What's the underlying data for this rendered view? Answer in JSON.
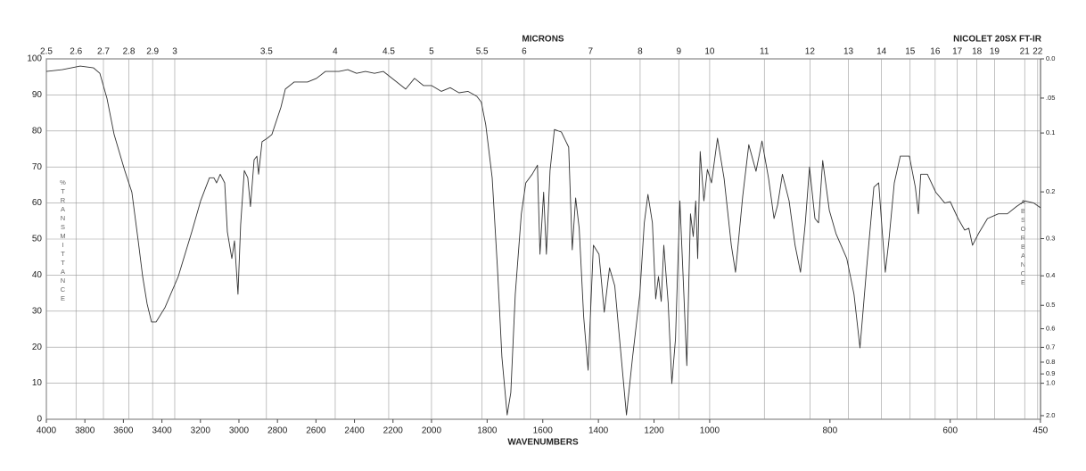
{
  "chart_data": {
    "type": "line",
    "title": "MICRONS",
    "instrument": "NICOLET 20SX FT-IR",
    "x_label": "WAVENUMBERS",
    "y_label": "%TRANSMITTANCE",
    "y2_label": "ABSORBANCE",
    "color": "#333333",
    "xlim": [
      4000,
      450
    ],
    "x_scale_breaks": [
      2000,
      1000
    ],
    "xticks": [
      4000,
      3800,
      3600,
      3400,
      3200,
      3000,
      2800,
      2600,
      2400,
      2200,
      2000,
      1800,
      1600,
      1400,
      1200,
      1000,
      800,
      600,
      450
    ],
    "micron_ticks": [
      2.5,
      2.6,
      2.7,
      2.8,
      2.9,
      3,
      3.5,
      4,
      4.5,
      5,
      5.5,
      6,
      7,
      8,
      9,
      10,
      11,
      12,
      13,
      14,
      15,
      16,
      17,
      18,
      19,
      21,
      22
    ],
    "ylim": [
      0,
      100
    ],
    "yticks": [
      0,
      10,
      20,
      30,
      40,
      50,
      60,
      70,
      80,
      90,
      100
    ],
    "y2ticks": [
      {
        "value": 0,
        "label": "0.0"
      },
      {
        "value": 0.05,
        "label": ".05"
      },
      0.1,
      0.2,
      0.3,
      0.4,
      0.5,
      0.6,
      0.7,
      0.8,
      0.9,
      {
        "value": 1,
        "label": "1.0"
      },
      {
        "value": 2,
        "label": "2.0"
      }
    ],
    "grid": true,
    "x": [
      4000,
      3917,
      3824,
      3755,
      3722,
      3685,
      3648,
      3593,
      3556,
      3523,
      3500,
      3477,
      3454,
      3430,
      3384,
      3315,
      3245,
      3199,
      3153,
      3130,
      3116,
      3097,
      3074,
      3060,
      3037,
      3023,
      3005,
      2991,
      2972,
      2954,
      2940,
      2921,
      2907,
      2898,
      2880,
      2852,
      2829,
      2782,
      2759,
      2713,
      2644,
      2597,
      2551,
      2481,
      2435,
      2389,
      2343,
      2296,
      2250,
      2181,
      2134,
      2088,
      2042,
      2000,
      1965,
      1933,
      1901,
      1869,
      1837,
      1821,
      1805,
      1782,
      1763,
      1747,
      1728,
      1715,
      1699,
      1677,
      1661,
      1638,
      1619,
      1610,
      1597,
      1587,
      1574,
      1558,
      1533,
      1507,
      1494,
      1482,
      1469,
      1453,
      1437,
      1418,
      1398,
      1379,
      1360,
      1341,
      1318,
      1299,
      1277,
      1251,
      1235,
      1222,
      1206,
      1194,
      1184,
      1174,
      1165,
      1149,
      1136,
      1123,
      1107,
      1094,
      1082,
      1069,
      1059,
      1050,
      1043,
      1034,
      1021,
      1008,
      997,
      987,
      976,
      964,
      957,
      945,
      935,
      923,
      913,
      902,
      893,
      887,
      879,
      868,
      858,
      849,
      841,
      834,
      825,
      819,
      812,
      801,
      790,
      772,
      760,
      750,
      739,
      727,
      719,
      713,
      708,
      702,
      693,
      683,
      668,
      658,
      653,
      649,
      638,
      624,
      609,
      600,
      587,
      576,
      569,
      563,
      553,
      538,
      520,
      505,
      490,
      476,
      461,
      450
    ],
    "values": [
      96.5,
      97,
      98,
      97.5,
      96,
      89,
      79,
      69,
      63,
      49.5,
      39.6,
      32,
      27,
      27,
      31,
      39.6,
      52,
      60.6,
      67,
      67,
      65.6,
      68,
      65.6,
      52,
      44.6,
      49.5,
      34.7,
      54,
      69,
      67,
      59,
      72,
      73,
      68,
      77,
      78,
      79,
      86.6,
      91.6,
      93.6,
      93.6,
      94.6,
      96.5,
      96.5,
      97,
      96,
      96.5,
      96,
      96.5,
      93.6,
      91.6,
      94.6,
      92.6,
      92.6,
      91,
      92,
      90.6,
      91,
      89.6,
      88,
      81.7,
      67,
      42,
      17.3,
      1.2,
      7.4,
      34.7,
      57,
      65.6,
      68,
      70.5,
      45.8,
      63,
      45.8,
      69,
      80.4,
      79.7,
      75.5,
      47,
      61.4,
      53,
      28.5,
      13.6,
      48.3,
      45.8,
      29.7,
      42,
      37,
      17.3,
      1.2,
      17.3,
      34.7,
      54.5,
      62.4,
      54.5,
      33.4,
      39.6,
      32.7,
      48.3,
      32.2,
      9.9,
      22.3,
      60.6,
      37,
      14.9,
      57,
      50.7,
      60.6,
      44.6,
      74.3,
      60.6,
      69.3,
      65.6,
      78,
      66.8,
      48.3,
      40.8,
      61.9,
      76.2,
      68.8,
      77.2,
      66.8,
      55.7,
      59.4,
      68,
      60.6,
      48.3,
      40.8,
      54.5,
      70,
      55.7,
      54.5,
      71.8,
      58,
      51.5,
      44.6,
      34.7,
      19.8,
      42,
      64.4,
      65.6,
      52,
      40.8,
      49.5,
      65.6,
      73,
      73,
      64.4,
      57,
      68,
      68,
      63,
      60,
      60.4,
      55.7,
      52.5,
      53,
      48.3,
      51.5,
      55.7,
      57,
      57,
      59,
      60.6,
      60,
      58.7
    ]
  }
}
